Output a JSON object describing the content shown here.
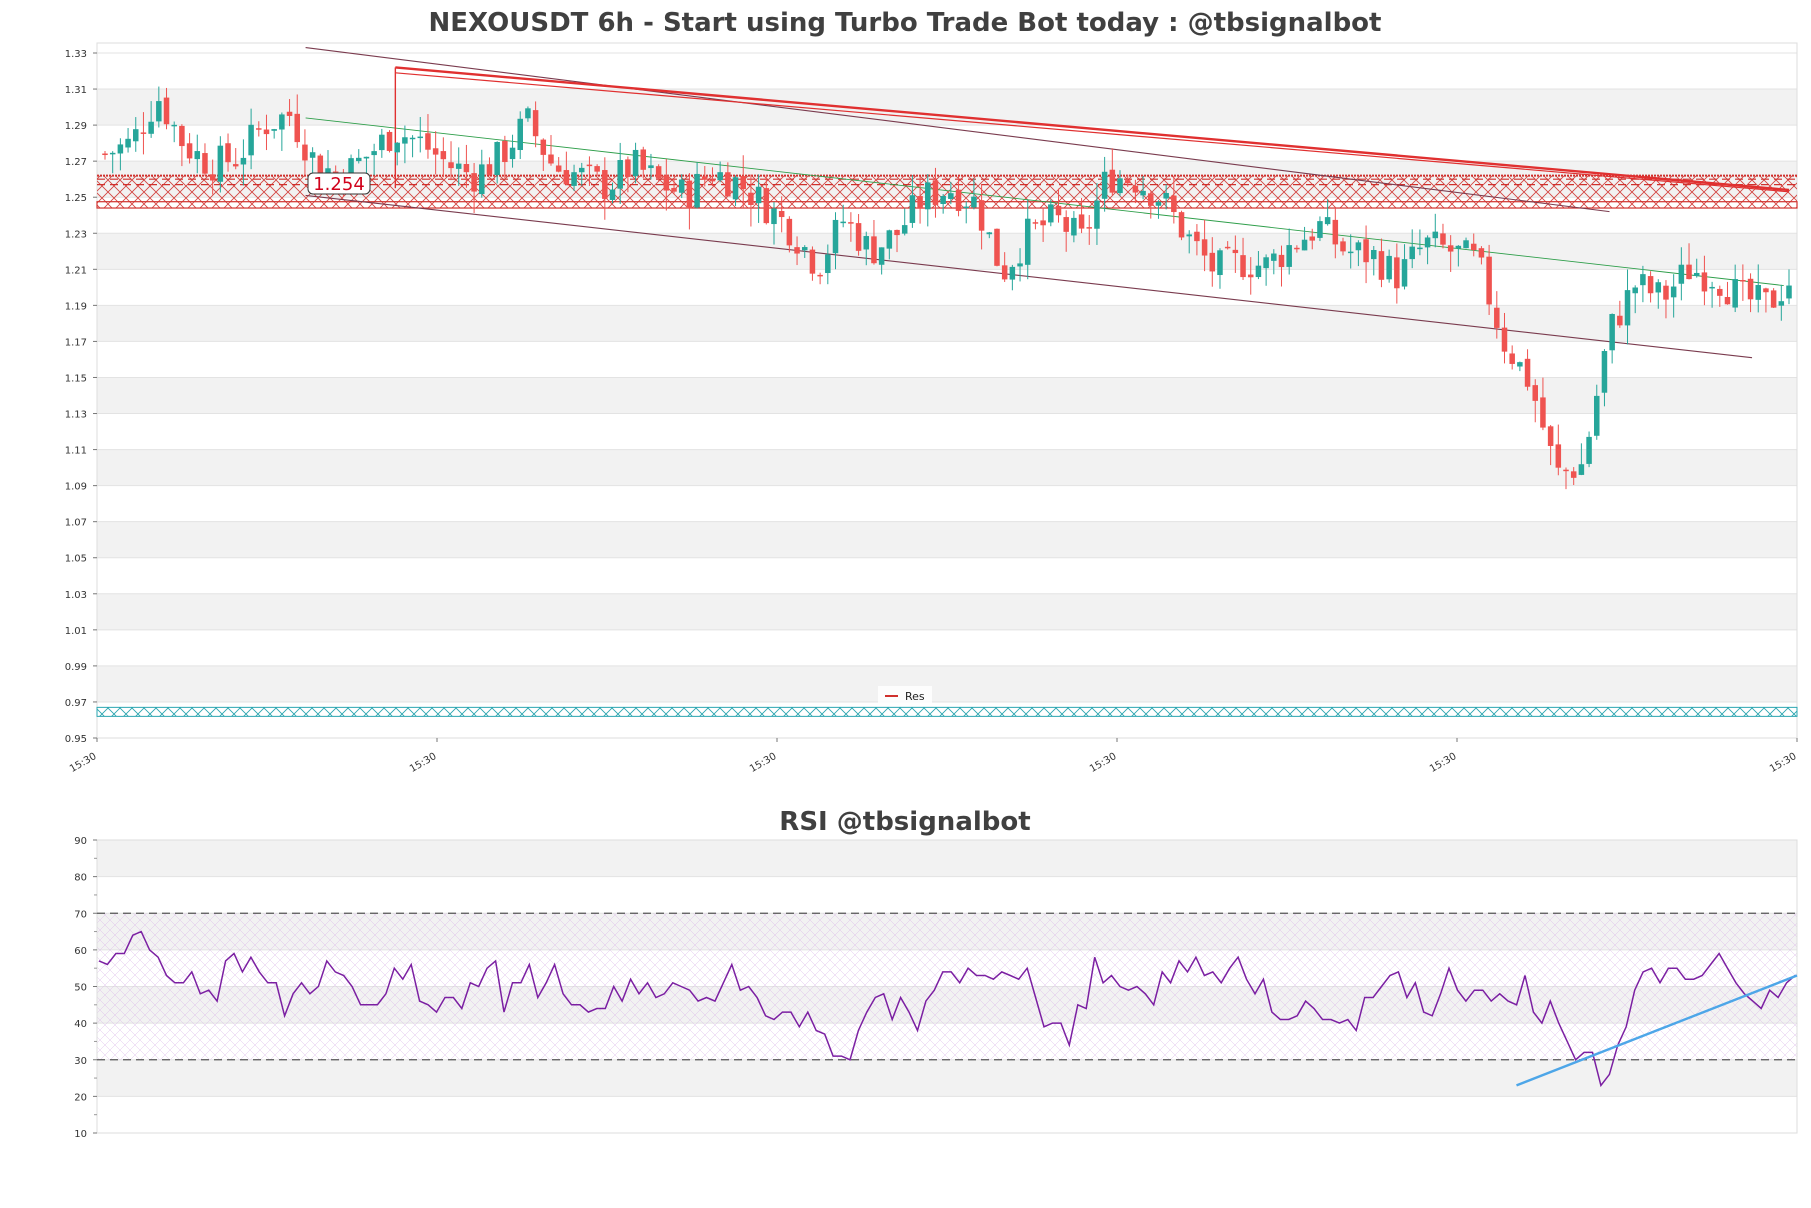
{
  "colors": {
    "up": "#26a69a",
    "down": "#ef5350",
    "resistance": "#d0312d",
    "support": "#2aa5b0",
    "channel": "#7a3b4e",
    "midline": "#2e9e4a",
    "trendline": "#e03030",
    "rsi_line": "#7b1fa2",
    "rsi_trend": "#4da6e8",
    "band_gray": "#f2f2f2"
  },
  "chart_data": [
    {
      "type": "candlestick",
      "title": "NEXOUSDT 6h - Start using Turbo Trade Bot today : @tbsignalbot",
      "ylim": [
        0.95,
        1.33
      ],
      "y_ticks": [
        "1.33",
        "1.31",
        "1.29",
        "1.27",
        "1.25",
        "1.23",
        "1.21",
        "1.19",
        "1.17",
        "1.15",
        "1.13",
        "1.11",
        "1.09",
        "1.07",
        "1.05",
        "1.03",
        "1.01",
        "0.99",
        "0.97",
        "0.95"
      ],
      "x_tick_labels": [
        "15:30",
        "15:30",
        "15:30",
        "15:30",
        "15:30",
        "15:30"
      ],
      "legend": {
        "label": "Res",
        "position": "bottom-center"
      },
      "price_label": "1.254",
      "resistance_zone": [
        1.244,
        1.262
      ],
      "resistance_lines": [
        1.262,
        1.26,
        1.257
      ],
      "support_zone": [
        0.962,
        0.967
      ],
      "candle_count": 220,
      "close_path": [
        [
          0,
          1.274
        ],
        [
          5,
          1.28
        ],
        [
          10,
          1.306
        ],
        [
          15,
          1.279
        ],
        [
          20,
          1.268
        ],
        [
          25,
          1.272
        ],
        [
          30,
          1.29
        ],
        [
          35,
          1.296
        ],
        [
          40,
          1.268
        ],
        [
          45,
          1.262
        ],
        [
          50,
          1.274
        ],
        [
          55,
          1.287
        ],
        [
          60,
          1.28
        ],
        [
          65,
          1.268
        ],
        [
          70,
          1.262
        ],
        [
          75,
          1.273
        ],
        [
          80,
          1.292
        ],
        [
          85,
          1.267
        ],
        [
          90,
          1.262
        ],
        [
          95,
          1.256
        ],
        [
          100,
          1.268
        ],
        [
          105,
          1.258
        ],
        [
          110,
          1.251
        ],
        [
          115,
          1.264
        ],
        [
          120,
          1.258
        ],
        [
          125,
          1.246
        ],
        [
          130,
          1.232
        ],
        [
          135,
          1.212
        ],
        [
          140,
          1.238
        ],
        [
          145,
          1.22
        ],
        [
          150,
          1.23
        ],
        [
          155,
          1.25
        ],
        [
          160,
          1.255
        ],
        [
          165,
          1.247
        ],
        [
          170,
          1.208
        ],
        [
          175,
          1.23
        ],
        [
          180,
          1.238
        ],
        [
          185,
          1.226
        ],
        [
          190,
          1.262
        ],
        [
          195,
          1.26
        ],
        [
          200,
          1.25
        ],
        [
          205,
          1.228
        ],
        [
          210,
          1.21
        ],
        [
          215,
          1.214
        ],
        [
          220,
          1.212
        ],
        [
          225,
          1.224
        ],
        [
          230,
          1.234
        ],
        [
          235,
          1.22
        ],
        [
          240,
          1.218
        ],
        [
          245,
          1.206
        ],
        [
          250,
          1.224
        ],
        [
          255,
          1.22
        ],
        [
          260,
          1.214
        ],
        [
          265,
          1.17
        ],
        [
          270,
          1.147
        ],
        [
          275,
          1.096
        ],
        [
          280,
          1.102
        ],
        [
          285,
          1.176
        ],
        [
          290,
          1.202
        ],
        [
          295,
          1.194
        ],
        [
          300,
          1.21
        ],
        [
          305,
          1.206
        ],
        [
          310,
          1.194
        ],
        [
          315,
          1.19
        ],
        [
          319,
          1.204
        ]
      ],
      "trend_channel": {
        "upper": [
          [
            0,
            1.333
          ],
          [
            285,
            1.241
          ]
        ],
        "lower": [
          [
            0,
            1.26
          ],
          [
            300,
            1.16
          ]
        ],
        "mid": [
          [
            0,
            1.295
          ],
          [
            319,
            1.201
          ]
        ]
      },
      "descending_trendline": [
        [
          55,
          1.322
        ],
        [
          319,
          1.254
        ]
      ]
    },
    {
      "type": "line",
      "title": "RSI @tbsignalbot",
      "ylim": [
        10,
        90
      ],
      "y_ticks": [
        "90",
        "80",
        "70",
        "60",
        "50",
        "40",
        "30",
        "20",
        "10"
      ],
      "levels": [
        70,
        30
      ],
      "series": [
        {
          "values": [
            57,
            56,
            59,
            59,
            64,
            65,
            60,
            58,
            53,
            51,
            51,
            54,
            48,
            49,
            46,
            57,
            59,
            54,
            58,
            54,
            51,
            51,
            42,
            48,
            51,
            48,
            50,
            57,
            54,
            53,
            50,
            45,
            45,
            45,
            48,
            55,
            52,
            56,
            46,
            45,
            43,
            47,
            47,
            44,
            51,
            50,
            55,
            57,
            43,
            51,
            51,
            56,
            47,
            51,
            56,
            48,
            45,
            45,
            43,
            44,
            44,
            50,
            46,
            52,
            48,
            51,
            47,
            48,
            51,
            50,
            49,
            46,
            47,
            46,
            51,
            56,
            49,
            50,
            47,
            42,
            41,
            43,
            43,
            39,
            43,
            38,
            37,
            31,
            31,
            30,
            38,
            43,
            47,
            48,
            41,
            47,
            43,
            38,
            46,
            49,
            54,
            54,
            51,
            55,
            53,
            53,
            52,
            54,
            53,
            52,
            55,
            47,
            39,
            40,
            40,
            34,
            45,
            44,
            58,
            51,
            53,
            50,
            49,
            50,
            48,
            45,
            54,
            51,
            57,
            54,
            58,
            53,
            54,
            51,
            55,
            58,
            52,
            48,
            52,
            43,
            41,
            41,
            42,
            46,
            44,
            41,
            41,
            40,
            41,
            38,
            47,
            47,
            50,
            53,
            54,
            47,
            51,
            43,
            42,
            48,
            55,
            49,
            46,
            49,
            49,
            46,
            48,
            46,
            45,
            53,
            43,
            40,
            46,
            40,
            35,
            30,
            32,
            32,
            23,
            26,
            34,
            39,
            49,
            54,
            55,
            51,
            55,
            55,
            52,
            52,
            53,
            56,
            59,
            55,
            51,
            48,
            46,
            44,
            49,
            47,
            51,
            53
          ]
        }
      ],
      "trendline": [
        [
          0.835,
          23
        ],
        [
          1.0,
          53
        ]
      ]
    }
  ]
}
